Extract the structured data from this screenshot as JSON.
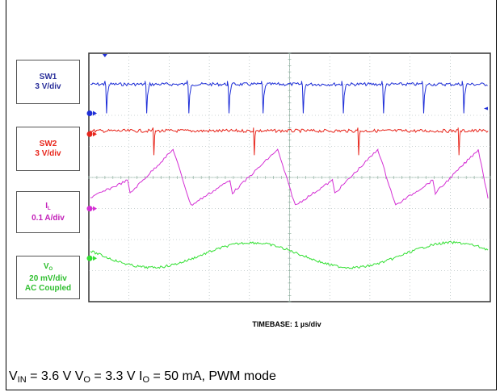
{
  "chart_data": {
    "type": "line",
    "title": "",
    "xlabel": "TIMEBASE: 1 µs/div",
    "ylabel": "",
    "x_divisions": 10,
    "y_divisions": 8,
    "grid": true,
    "series": [
      {
        "name": "SW1",
        "scale": "3 V/div",
        "color": "#1f2fd8",
        "level_div": 7.0,
        "edges_div": [
          0.4,
          1.4,
          2.45,
          3.45,
          4.3,
          5.3,
          6.3,
          7.3,
          8.3,
          9.3,
          10.0
        ]
      },
      {
        "name": "SW2",
        "scale": "3 V/div",
        "color": "#e8261c",
        "level_div": 5.5,
        "spikes_div": [
          1.6,
          4.1,
          6.7,
          9.2
        ]
      },
      {
        "name": "I_L",
        "scale": "0.1 A/div",
        "color": "#d42fd4",
        "min_div": 3.1,
        "max_div": 4.9,
        "peaks_div": [
          2.1,
          4.7,
          7.2,
          9.7
        ]
      },
      {
        "name": "V_O",
        "scale": "20 mV/div",
        "color": "#33e033",
        "center_div": 1.5,
        "amplitude_div": 0.4,
        "period_div": 5.0
      }
    ],
    "legend": {
      "sw1": {
        "name": "SW1",
        "scale": "3 V/div"
      },
      "sw2": {
        "name": "SW2",
        "scale": "3 V/div"
      },
      "il": {
        "name": "I",
        "sub": "L",
        "scale": "0.1 A/div"
      },
      "vo": {
        "name": "V",
        "sub": "O",
        "scale": "20 mV/div",
        "coupling": "AC Coupled"
      }
    },
    "caption": {
      "v_in_label": "V",
      "v_in_sub": "IN",
      "v_in_value": " = 3.6 V ",
      "v_o_label": "V",
      "v_o_sub": "O",
      "v_o_value": " = 3.3 V ",
      "i_o_label": "I",
      "i_o_sub": "O",
      "i_o_value": " = 50 mA, PWM mode"
    }
  }
}
